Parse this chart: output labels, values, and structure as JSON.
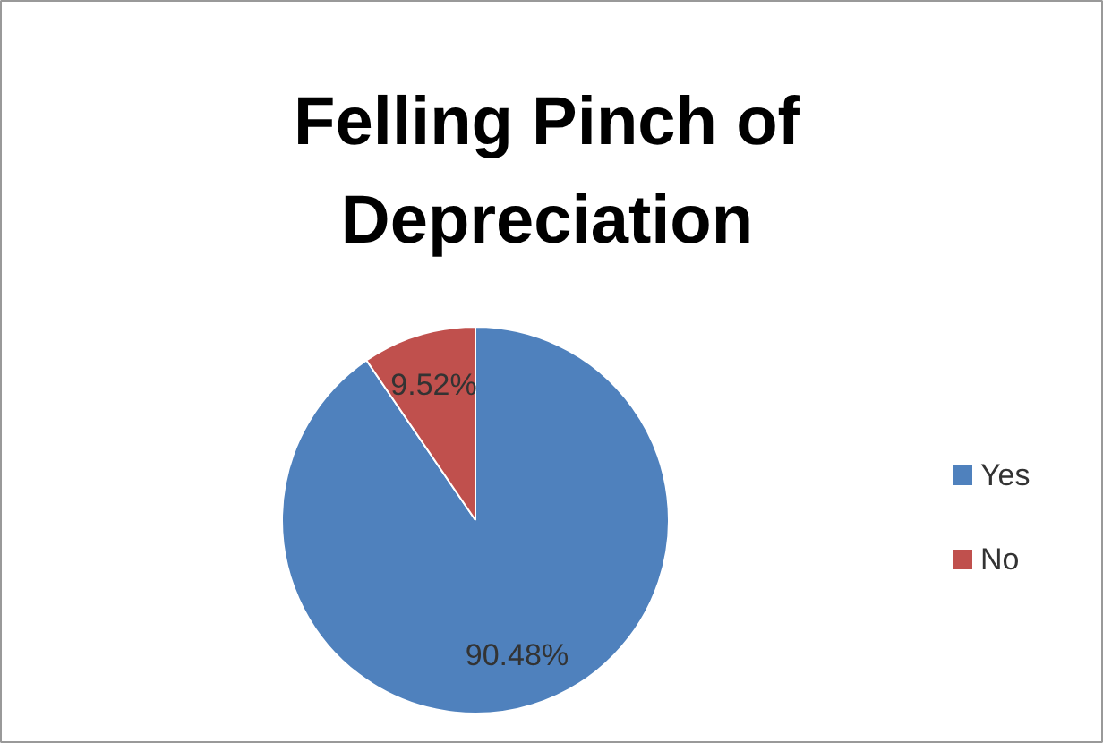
{
  "chart_data": {
    "type": "pie",
    "title": "Felling Pinch of Depreciation",
    "categories": [
      "Yes",
      "No"
    ],
    "values": [
      90.48,
      9.52
    ],
    "colors": [
      "#4f81bd",
      "#c0504d"
    ],
    "value_labels": [
      "90.48%",
      "9.52%"
    ],
    "legend": "right"
  }
}
